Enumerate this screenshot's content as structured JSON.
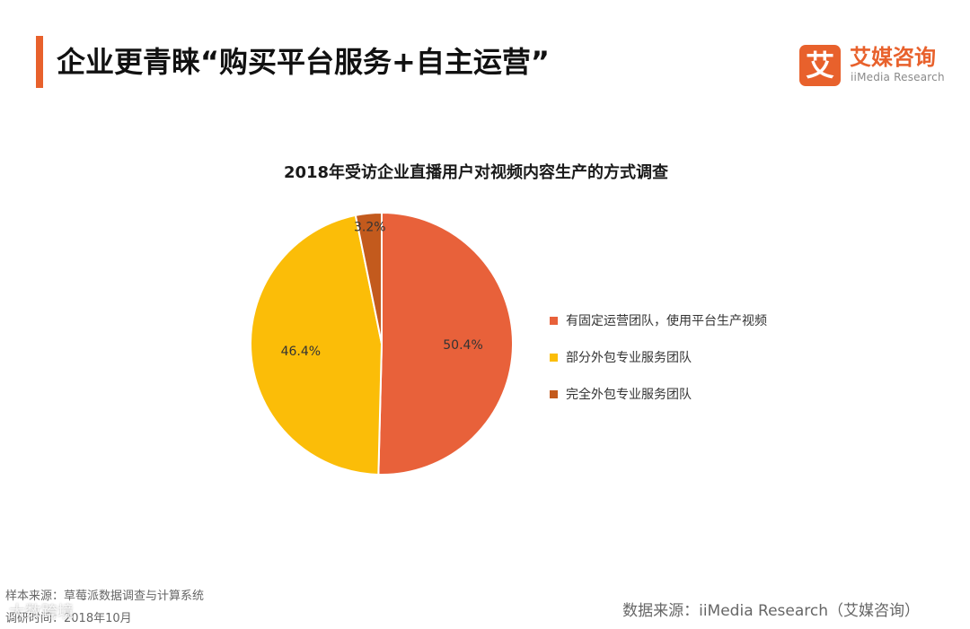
{
  "header": {
    "title": "企业更青睐“购买平台服务+自主运营”",
    "accent_color": "#e8612c"
  },
  "logo": {
    "badge_char": "艾",
    "name": "艾媒咨询",
    "subtitle": "iiMedia Research",
    "color": "#e8612c"
  },
  "chart_data": {
    "type": "pie",
    "title": "2018年受访企业直播用户对视频内容生产的方式调查",
    "slices": [
      {
        "label": "有固定运营团队，使用平台生产视频",
        "value": 50.4,
        "display": "50.4%",
        "color": "#e8613a"
      },
      {
        "label": "部分外包专业服务团队",
        "value": 46.4,
        "display": "46.4%",
        "color": "#fbbd08"
      },
      {
        "label": "完全外包专业服务团队",
        "value": 3.2,
        "display": "3.2%",
        "color": "#c35a1d"
      }
    ],
    "legend_position": "right"
  },
  "footer": {
    "sample_source": "样本来源：草莓派数据调查与计算系统",
    "survey_time": "调研时间：2018年10月",
    "data_source": "数据来源：iiMedia Research（艾媒咨询）"
  },
  "watermark": "大数跨境"
}
